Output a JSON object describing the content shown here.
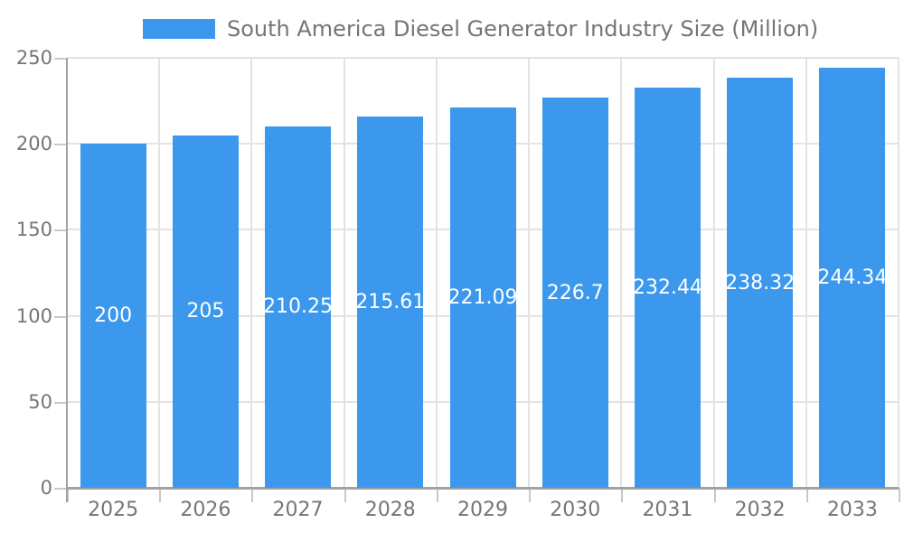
{
  "legend": {
    "label": "South America Diesel Generator Industry Size (Million)"
  },
  "chart_data": {
    "type": "bar",
    "title": "South America Diesel Generator Industry Size (Million)",
    "categories": [
      "2025",
      "2026",
      "2027",
      "2028",
      "2029",
      "2030",
      "2031",
      "2032",
      "2033"
    ],
    "values": [
      200,
      205,
      210.25,
      215.61,
      221.09,
      226.7,
      232.44,
      238.32,
      244.34
    ],
    "bar_labels": [
      "200",
      "205",
      "210.25",
      "215.61",
      "221.09",
      "226.7",
      "232.44",
      "238.32",
      "244.34"
    ],
    "xlabel": "",
    "ylabel": "",
    "ylim": [
      0,
      250
    ],
    "yticks": [
      0,
      50,
      100,
      150,
      200,
      250
    ],
    "grid": true,
    "legend_position": "top",
    "colors": {
      "bar": "#3b98ec",
      "bar_label_text": "#ffffff",
      "axis_text": "#757575",
      "grid_line": "#e3e3e3",
      "axis_line": "#a3a3a3",
      "tick_mark": "#c9c9c9",
      "background": "#ffffff"
    }
  }
}
